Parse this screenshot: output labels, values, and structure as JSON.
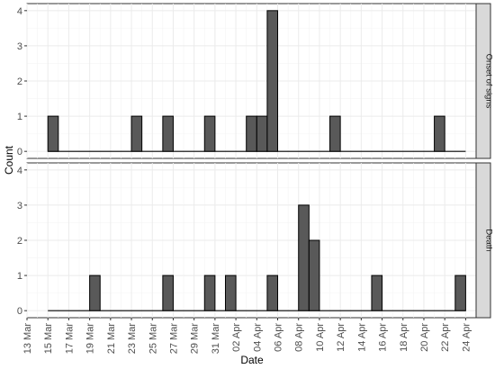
{
  "chart_data": {
    "type": "bar",
    "xlabel": "Date",
    "ylabel": "Count",
    "bar_fill": "#595959",
    "bar_stroke": "#000000",
    "strip_fill": "#d9d9d9",
    "grid": true,
    "facet_placement": "right",
    "x_range": [
      "2020-03-13",
      "2020-04-25"
    ],
    "x_tick_labels": [
      {
        "date": "2020-03-13",
        "label": "13 Mar"
      },
      {
        "date": "2020-03-15",
        "label": "15 Mar"
      },
      {
        "date": "2020-03-17",
        "label": "17 Mar"
      },
      {
        "date": "2020-03-19",
        "label": "19 Mar"
      },
      {
        "date": "2020-03-21",
        "label": "21 Mar"
      },
      {
        "date": "2020-03-23",
        "label": "23 Mar"
      },
      {
        "date": "2020-03-25",
        "label": "25 Mar"
      },
      {
        "date": "2020-03-27",
        "label": "27 Mar"
      },
      {
        "date": "2020-03-29",
        "label": "29 Mar"
      },
      {
        "date": "2020-03-31",
        "label": "31 Mar"
      },
      {
        "date": "2020-04-02",
        "label": "02 Apr"
      },
      {
        "date": "2020-04-04",
        "label": "04 Apr"
      },
      {
        "date": "2020-04-06",
        "label": "06 Apr"
      },
      {
        "date": "2020-04-08",
        "label": "08 Apr"
      },
      {
        "date": "2020-04-10",
        "label": "10 Apr"
      },
      {
        "date": "2020-04-12",
        "label": "12 Apr"
      },
      {
        "date": "2020-04-14",
        "label": "14 Apr"
      },
      {
        "date": "2020-04-16",
        "label": "16 Apr"
      },
      {
        "date": "2020-04-18",
        "label": "18 Apr"
      },
      {
        "date": "2020-04-20",
        "label": "20 Apr"
      },
      {
        "date": "2020-04-22",
        "label": "22 Apr"
      },
      {
        "date": "2020-04-24",
        "label": "24 Apr"
      }
    ],
    "panels": [
      {
        "strip_label": "Onset of signs",
        "ylim": [
          0,
          4
        ],
        "y_ticks": [
          0,
          1,
          2,
          3,
          4
        ],
        "bars": [
          {
            "date": "2020-03-15",
            "count": 1
          },
          {
            "date": "2020-03-23",
            "count": 1
          },
          {
            "date": "2020-03-26",
            "count": 1
          },
          {
            "date": "2020-03-30",
            "count": 1
          },
          {
            "date": "2020-04-03",
            "count": 1
          },
          {
            "date": "2020-04-04",
            "count": 1
          },
          {
            "date": "2020-04-05",
            "count": 4
          },
          {
            "date": "2020-04-11",
            "count": 1
          },
          {
            "date": "2020-04-21",
            "count": 1
          }
        ],
        "line": {
          "from": "2020-03-15",
          "to": "2020-04-23"
        }
      },
      {
        "strip_label": "Death",
        "ylim": [
          0,
          4
        ],
        "y_ticks": [
          0,
          1,
          2,
          3,
          4
        ],
        "bars": [
          {
            "date": "2020-03-19",
            "count": 1
          },
          {
            "date": "2020-03-26",
            "count": 1
          },
          {
            "date": "2020-03-30",
            "count": 1
          },
          {
            "date": "2020-04-01",
            "count": 1
          },
          {
            "date": "2020-04-05",
            "count": 1
          },
          {
            "date": "2020-04-08",
            "count": 3
          },
          {
            "date": "2020-04-09",
            "count": 2
          },
          {
            "date": "2020-04-15",
            "count": 1
          },
          {
            "date": "2020-04-23",
            "count": 1
          }
        ],
        "line": {
          "from": "2020-03-15",
          "to": "2020-04-23"
        }
      }
    ]
  }
}
